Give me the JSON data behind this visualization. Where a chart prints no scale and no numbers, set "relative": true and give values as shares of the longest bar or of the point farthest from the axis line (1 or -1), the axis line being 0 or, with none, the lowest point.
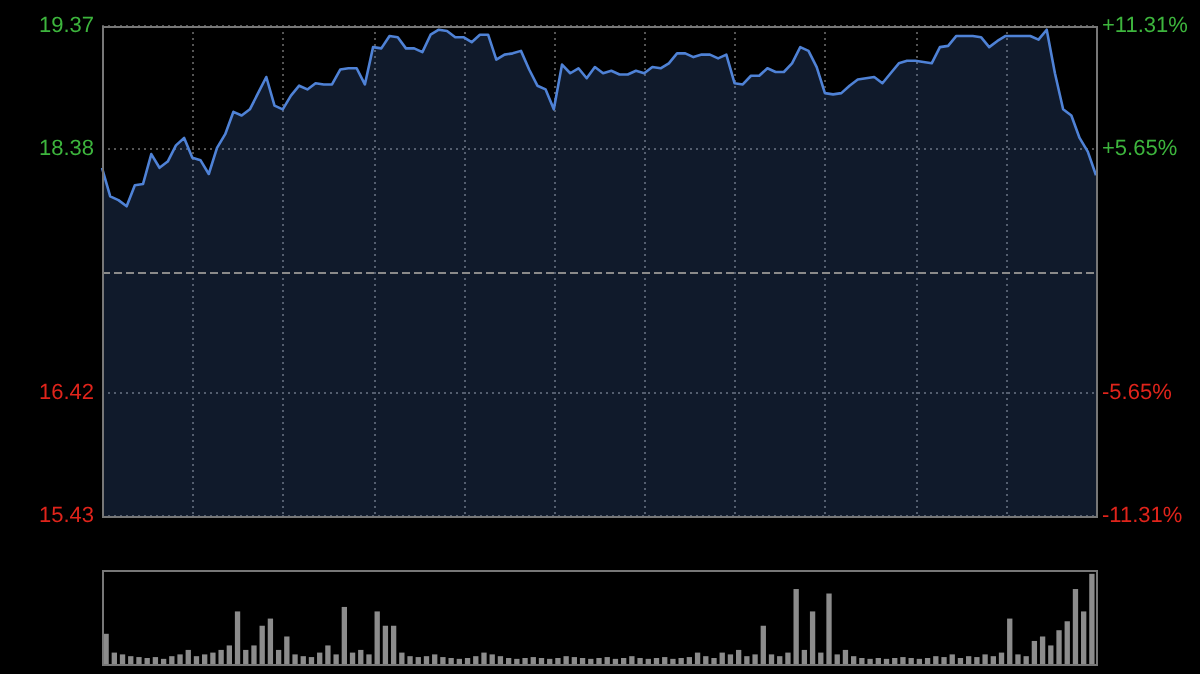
{
  "chart_data": [
    {
      "type": "area",
      "color": "#4f82d6",
      "categories": [
        null,
        null,
        null,
        null,
        null,
        null,
        null,
        null,
        null,
        null,
        null,
        null,
        null,
        null,
        null,
        null,
        null,
        null,
        null,
        null,
        null,
        null,
        null,
        null,
        null,
        null,
        null,
        null,
        null,
        null,
        null,
        null,
        null,
        null,
        null,
        null,
        null,
        null,
        null,
        null,
        null,
        null,
        null,
        null,
        null,
        null,
        null,
        null,
        null,
        null,
        null,
        null,
        null,
        null,
        null,
        null,
        null,
        null,
        null,
        null,
        null,
        null,
        null,
        null,
        null,
        null,
        null,
        null,
        null,
        null,
        null,
        null,
        null,
        null,
        null,
        null,
        null,
        null,
        null,
        null,
        null,
        null,
        null,
        null,
        null,
        null,
        null,
        null,
        null,
        null,
        null,
        null,
        null,
        null,
        null,
        null,
        null,
        null,
        null,
        null,
        null,
        null,
        null,
        null,
        null,
        null,
        null,
        null,
        null,
        null,
        null,
        null,
        null,
        null,
        null,
        null,
        null,
        null,
        null,
        null,
        null,
        null
      ],
      "values": [
        18.23,
        18.0,
        17.97,
        17.92,
        18.09,
        18.1,
        18.34,
        18.23,
        18.28,
        18.41,
        18.47,
        18.31,
        18.29,
        18.18,
        18.39,
        18.5,
        18.68,
        18.65,
        18.7,
        18.83,
        18.96,
        18.73,
        18.7,
        18.81,
        18.89,
        18.86,
        18.91,
        18.9,
        18.9,
        19.02,
        19.03,
        19.03,
        18.9,
        19.2,
        19.19,
        19.29,
        19.28,
        19.19,
        19.19,
        19.16,
        19.3,
        19.34,
        19.33,
        19.28,
        19.28,
        19.24,
        19.3,
        19.3,
        19.1,
        19.14,
        19.15,
        19.17,
        19.02,
        18.89,
        18.86,
        18.7,
        19.06,
        18.99,
        19.03,
        18.95,
        19.04,
        18.99,
        19.01,
        18.98,
        18.98,
        19.01,
        18.99,
        19.04,
        19.03,
        19.07,
        19.15,
        19.15,
        19.12,
        19.14,
        19.14,
        19.11,
        19.14,
        18.91,
        18.9,
        18.97,
        18.97,
        19.03,
        19.0,
        19.0,
        19.07,
        19.2,
        19.17,
        19.04,
        18.83,
        18.82,
        18.83,
        18.89,
        18.94,
        18.95,
        18.96,
        18.91,
        18.99,
        19.07,
        19.09,
        19.09,
        19.08,
        19.07,
        19.2,
        19.21,
        19.29,
        19.29,
        19.29,
        19.28,
        19.2,
        19.25,
        19.29,
        19.29,
        19.29,
        19.29,
        19.26,
        19.34,
        18.99,
        18.7,
        18.65,
        18.47,
        18.36,
        18.17
      ],
      "ylim": [
        15.43,
        19.37
      ],
      "yticks": [
        15.43,
        16.42,
        18.38,
        19.37
      ],
      "y2lim": [
        -11.31,
        11.31
      ],
      "y2ticks": [
        {
          "value": -11.31,
          "label": "-11.31%"
        },
        {
          "value": -5.65,
          "label": "-5.65%"
        },
        {
          "value": 5.65,
          "label": "+5.65%"
        },
        {
          "value": 11.31,
          "label": "+11.31%"
        }
      ],
      "ref_lines": [
        {
          "axis": "y",
          "value": 17.4,
          "line_style": "dashed"
        }
      ],
      "grid": true,
      "tick_labels": "y",
      "legend": false
    },
    {
      "type": "bar",
      "color": "#8c8c8c",
      "relative": true,
      "tick_labels": false,
      "legend": false,
      "categories": [
        null,
        null,
        null,
        null,
        null,
        null,
        null,
        null,
        null,
        null,
        null,
        null,
        null,
        null,
        null,
        null,
        null,
        null,
        null,
        null,
        null,
        null,
        null,
        null,
        null,
        null,
        null,
        null,
        null,
        null,
        null,
        null,
        null,
        null,
        null,
        null,
        null,
        null,
        null,
        null,
        null,
        null,
        null,
        null,
        null,
        null,
        null,
        null,
        null,
        null,
        null,
        null,
        null,
        null,
        null,
        null,
        null,
        null,
        null,
        null,
        null,
        null,
        null,
        null,
        null,
        null,
        null,
        null,
        null,
        null,
        null,
        null,
        null,
        null,
        null,
        null,
        null,
        null,
        null,
        null,
        null,
        null,
        null,
        null,
        null,
        null,
        null,
        null,
        null,
        null,
        null,
        null,
        null,
        null,
        null,
        null,
        null,
        null,
        null,
        null,
        null,
        null,
        null,
        null,
        null,
        null,
        null,
        null,
        null,
        null,
        null,
        null,
        null,
        null,
        null,
        null,
        null,
        null,
        null,
        null,
        null
      ],
      "values": [
        0.33,
        0.12,
        0.1,
        0.08,
        0.07,
        0.06,
        0.07,
        0.05,
        0.08,
        0.1,
        0.15,
        0.08,
        0.1,
        0.12,
        0.15,
        0.2,
        0.58,
        0.15,
        0.2,
        0.42,
        0.5,
        0.15,
        0.3,
        0.1,
        0.08,
        0.07,
        0.12,
        0.2,
        0.1,
        0.63,
        0.12,
        0.15,
        0.1,
        0.58,
        0.42,
        0.42,
        0.12,
        0.08,
        0.07,
        0.08,
        0.1,
        0.07,
        0.06,
        0.05,
        0.06,
        0.08,
        0.12,
        0.1,
        0.08,
        0.06,
        0.05,
        0.06,
        0.07,
        0.06,
        0.05,
        0.06,
        0.08,
        0.07,
        0.06,
        0.05,
        0.06,
        0.07,
        0.05,
        0.06,
        0.08,
        0.06,
        0.05,
        0.06,
        0.07,
        0.05,
        0.06,
        0.07,
        0.12,
        0.08,
        0.06,
        0.12,
        0.1,
        0.15,
        0.08,
        0.1,
        0.42,
        0.1,
        0.08,
        0.12,
        0.83,
        0.15,
        0.58,
        0.12,
        0.78,
        0.1,
        0.15,
        0.08,
        0.06,
        0.05,
        0.06,
        0.05,
        0.06,
        0.07,
        0.06,
        0.05,
        0.06,
        0.08,
        0.07,
        0.1,
        0.06,
        0.08,
        0.07,
        0.1,
        0.08,
        0.12,
        0.5,
        0.1,
        0.08,
        0.25,
        0.3,
        0.2,
        0.37,
        0.47,
        0.83,
        0.58,
        1
      ]
    }
  ]
}
